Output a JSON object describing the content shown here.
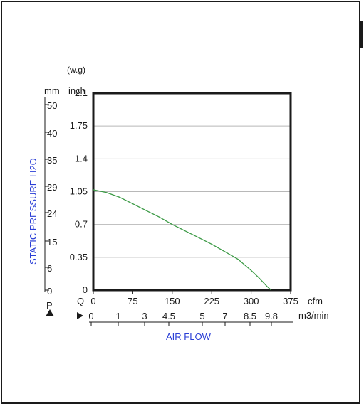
{
  "chart_data": {
    "type": "line",
    "xlabel": "AIR FLOW",
    "ylabel": "STATIC PRESSURE H2O",
    "x_units": {
      "primary": "cfm",
      "secondary": "m3/min"
    },
    "y_units": {
      "primary": "inch",
      "primary_note": "(w.g)",
      "secondary": "mm"
    },
    "xlim": [
      0,
      375
    ],
    "ylim": [
      0,
      2.1
    ],
    "x_ticks_cfm": [
      "0",
      "75",
      "150",
      "225",
      "300",
      "375"
    ],
    "x_ticks_m3min": [
      "0",
      "1",
      "3",
      "4.5",
      "5",
      "7",
      "8.5",
      "9.8"
    ],
    "y_ticks_inch": [
      "0",
      "0.35",
      "0.7",
      "1.05",
      "1.4",
      "1.75",
      "2.1"
    ],
    "y_ticks_mm": [
      "0",
      "6",
      "15",
      "24",
      "29",
      "35",
      "40",
      "50"
    ],
    "x_axis_symbol": "Q",
    "y_axis_symbol": "P",
    "grid": true,
    "series": [
      {
        "x": [
          0,
          25,
          50,
          75,
          100,
          125,
          150,
          175,
          200,
          225,
          250,
          275,
          300,
          315,
          330,
          338
        ],
        "y": [
          1.07,
          1.04,
          0.99,
          0.92,
          0.85,
          0.78,
          0.7,
          0.63,
          0.56,
          0.49,
          0.41,
          0.33,
          0.21,
          0.13,
          0.04,
          0.0
        ]
      }
    ],
    "colors": {
      "curve": "#3c9a46",
      "axis_title": "#2b3fd6"
    }
  }
}
